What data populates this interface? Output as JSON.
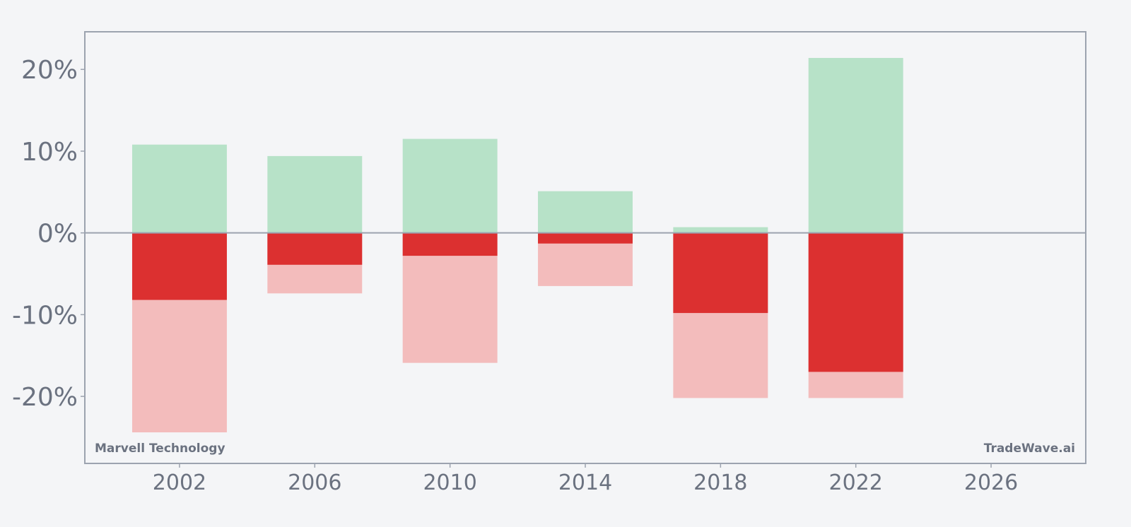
{
  "chart_data": {
    "type": "bar",
    "title": "",
    "xlabel": "",
    "ylabel": "",
    "x": [
      2002,
      2006,
      2010,
      2014,
      2018,
      2022
    ],
    "series": [
      {
        "values": [
          10.8,
          9.4,
          11.5,
          5.1,
          0.7,
          21.4
        ],
        "color": "#b7e2c8",
        "role": "positive"
      },
      {
        "values": [
          -8.2,
          -3.9,
          -2.8,
          -1.3,
          -9.8,
          -17.0
        ],
        "color": "#dc3030",
        "role": "negative-dark"
      },
      {
        "values": [
          -24.4,
          -7.4,
          -15.9,
          -6.5,
          -20.2,
          -20.2
        ],
        "color": "#f3bcbc",
        "role": "negative-light"
      }
    ],
    "xlim": [
      1999.2,
      2028.8
    ],
    "ylim": [
      -28.2,
      24.6
    ],
    "x_ticks": [
      2002,
      2006,
      2010,
      2014,
      2018,
      2022,
      2026
    ],
    "x_tick_labels": [
      "2002",
      "2006",
      "2010",
      "2014",
      "2018",
      "2022",
      "2026"
    ],
    "y_ticks": [
      20,
      10,
      0,
      -10,
      -20
    ],
    "y_tick_labels": [
      "20%",
      "10%",
      "0%",
      "-10%",
      "-20%"
    ],
    "grid": false,
    "zero_line": true,
    "bar_width_years": 2.8
  },
  "watermarks": {
    "left": "Marvell Technology",
    "right": "TradeWave.ai"
  },
  "colors": {
    "background": "#f4f5f7",
    "frame": "#9ca3af",
    "tick_text": "#6b7280"
  }
}
